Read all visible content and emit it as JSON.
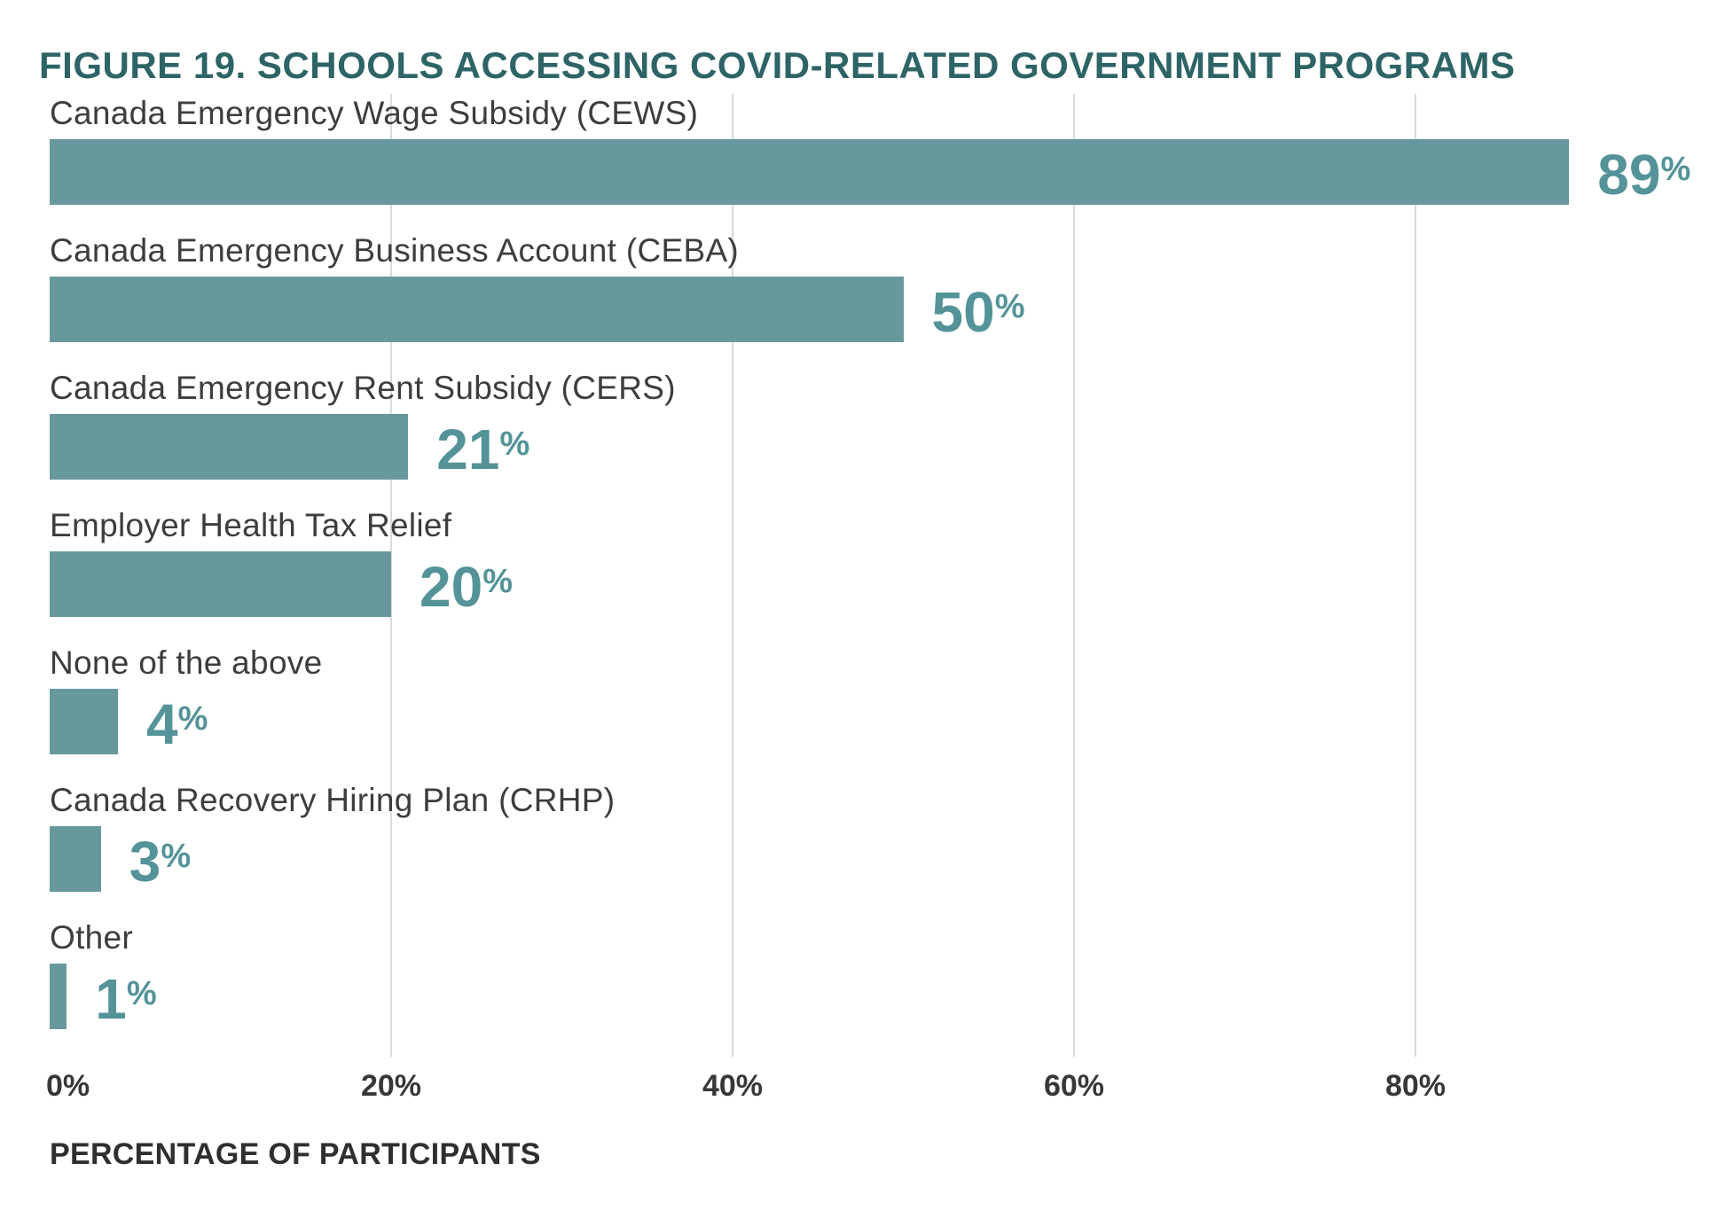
{
  "figure": {
    "title": "FIGURE 19. SCHOOLS ACCESSING COVID-RELATED GOVERNMENT PROGRAMS"
  },
  "chart_data": {
    "type": "bar",
    "orientation": "horizontal",
    "title": "FIGURE 19. SCHOOLS ACCESSING COVID-RELATED GOVERNMENT PROGRAMS",
    "categories": [
      "Canada Emergency Wage Subsidy (CEWS)",
      "Canada Emergency Business Account (CEBA)",
      "Canada Emergency Rent Subsidy (CERS)",
      "Employer Health Tax Relief",
      "None of the above",
      "Canada Recovery Hiring Plan (CRHP)",
      "Other"
    ],
    "values": [
      89,
      50,
      21,
      20,
      4,
      3,
      1
    ],
    "value_suffix": "%",
    "xlabel": "PERCENTAGE OF PARTICIPANTS",
    "x_ticks": [
      "0%",
      "20%",
      "40%",
      "60%",
      "80%"
    ],
    "x_tick_values": [
      0,
      20,
      40,
      60,
      80
    ],
    "xlim": [
      0,
      98
    ],
    "grid": "vertical-lines-at-major-ticks",
    "legend": "none",
    "colors": {
      "bar": "#67999C",
      "value_text": "#549398",
      "title_text": "#2D6466",
      "category_text": "#3D3D3D",
      "tick_text": "#373737",
      "axis_title_text": "#2F2F2F",
      "gridline": "#D8DADB",
      "background": "#FFFFFF"
    }
  }
}
